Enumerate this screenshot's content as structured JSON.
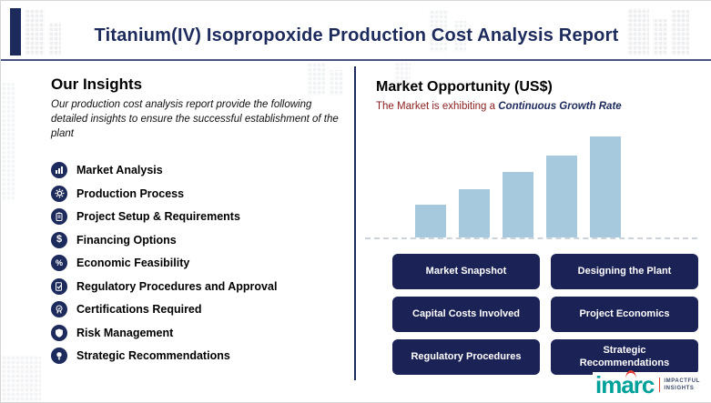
{
  "header": {
    "title": "Titanium(IV) Isopropoxide Production Cost Analysis Report"
  },
  "insights": {
    "heading": "Our Insights",
    "description": "Our production cost analysis report provide the following detailed insights to ensure the successful establishment of the plant",
    "items": [
      {
        "label": "Market Analysis",
        "icon": "market-analysis-icon"
      },
      {
        "label": "Production Process",
        "icon": "production-process-icon"
      },
      {
        "label": "Project Setup & Requirements",
        "icon": "project-setup-icon"
      },
      {
        "label": "Financing Options",
        "icon": "financing-icon"
      },
      {
        "label": "Economic Feasibility",
        "icon": "economic-feasibility-icon"
      },
      {
        "label": "Regulatory Procedures and Approval",
        "icon": "regulatory-icon"
      },
      {
        "label": "Certifications Required",
        "icon": "certifications-icon"
      },
      {
        "label": "Risk Management",
        "icon": "risk-management-icon"
      },
      {
        "label": "Strategic Recommendations",
        "icon": "strategic-icon"
      }
    ]
  },
  "market": {
    "heading": "Market Opportunity (US$)",
    "subtitle_prefix": "The Market is exhibiting a ",
    "subtitle_highlight": "Continuous Growth Rate"
  },
  "chart_data": {
    "type": "bar",
    "title": "Market Opportunity (US$)",
    "categories": [
      "",
      "",
      "",
      "",
      ""
    ],
    "values": [
      36,
      53,
      72,
      90,
      111
    ],
    "ylim": [
      0,
      115
    ],
    "xlabel": "",
    "ylabel": "",
    "bar_color": "#a7c9de",
    "baseline_style": "dashed",
    "annotation": "schematic increasing bars, no axis tick labels shown"
  },
  "buttons": [
    "Market Snapshot",
    "Designing the Plant",
    "Capital Costs Involved",
    "Project Economics",
    "Regulatory Procedures",
    "Strategic Recommendations"
  ],
  "logo": {
    "name": "imarc",
    "tagline_line1": "IMPACTFUL",
    "tagline_line2": "INSIGHTS"
  },
  "colors": {
    "navy": "#1d2a5c",
    "button_navy": "#1b2356",
    "bar_blue": "#a7c9de",
    "maroon": "#8a1d1d",
    "logo_teal": "#00a19a",
    "logo_red": "#e23a2e"
  }
}
